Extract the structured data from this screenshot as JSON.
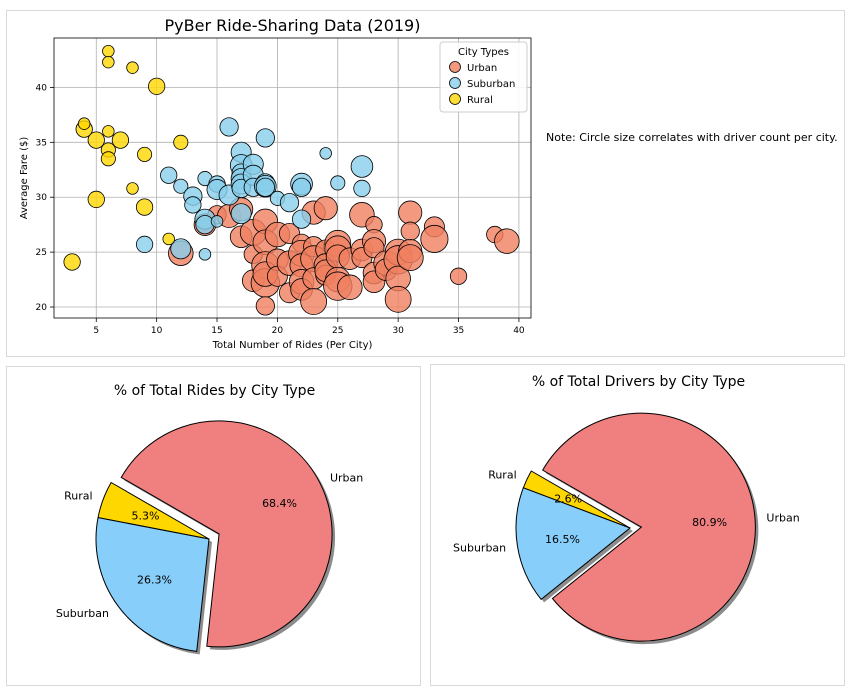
{
  "chart_data": [
    {
      "type": "scatter",
      "title": "PyBer Ride-Sharing Data (2019)",
      "xlabel": "Total Number of Rides (Per City)",
      "ylabel": "Average Fare ($)",
      "xlim": [
        1.5,
        41
      ],
      "ylim": [
        19,
        44.5
      ],
      "xticks": [
        5,
        10,
        15,
        20,
        25,
        30,
        35,
        40
      ],
      "yticks": [
        20,
        25,
        30,
        35,
        40
      ],
      "grid": true,
      "legend": {
        "title": "City Types",
        "placement": "top-right",
        "entries": [
          "Urban",
          "Suburban",
          "Rural"
        ]
      },
      "note": "Note: Circle size correlates with driver count per city.",
      "series": [
        {
          "name": "Urban",
          "color": "#F08060",
          "points": [
            [
              12,
              24.9,
              9
            ],
            [
              14,
              27.5,
              7
            ],
            [
              15,
              28.4,
              5
            ],
            [
              16,
              28.3,
              8
            ],
            [
              17,
              26.4,
              7
            ],
            [
              17,
              28.9,
              8
            ],
            [
              18,
              26.8,
              10
            ],
            [
              18,
              24.8,
              5
            ],
            [
              18,
              22.4,
              7
            ],
            [
              19,
              27.8,
              9
            ],
            [
              19,
              25.9,
              9
            ],
            [
              19,
              23.8,
              11
            ],
            [
              19,
              22.2,
              12
            ],
            [
              19,
              20.1,
              5
            ],
            [
              19,
              23.0,
              9
            ],
            [
              20,
              26.6,
              9
            ],
            [
              20,
              24.3,
              7
            ],
            [
              20,
              22.8,
              6
            ],
            [
              21,
              26.7,
              6
            ],
            [
              21,
              24.0,
              9
            ],
            [
              21,
              21.3,
              6
            ],
            [
              22,
              25.8,
              5
            ],
            [
              22,
              24.9,
              10
            ],
            [
              22,
              23.8,
              8
            ],
            [
              22,
              22.3,
              9
            ],
            [
              22,
              21.6,
              7
            ],
            [
              23,
              28.6,
              8
            ],
            [
              23,
              25.5,
              6
            ],
            [
              23,
              24.4,
              10
            ],
            [
              23,
              22.6,
              7
            ],
            [
              23,
              20.5,
              10
            ],
            [
              24,
              29.0,
              8
            ],
            [
              24,
              25.2,
              6
            ],
            [
              24,
              23.8,
              8
            ],
            [
              24,
              22.9,
              6
            ],
            [
              24,
              23.3,
              7
            ],
            [
              25,
              25.8,
              10
            ],
            [
              25,
              25.3,
              10
            ],
            [
              25,
              24.6,
              8
            ],
            [
              25,
              22.5,
              9
            ],
            [
              25,
              21.9,
              12
            ],
            [
              26,
              24.4,
              7
            ],
            [
              26,
              21.8,
              9
            ],
            [
              27,
              28.4,
              9
            ],
            [
              27,
              25.2,
              7
            ],
            [
              27,
              24.5,
              6
            ],
            [
              28,
              27.5,
              4
            ],
            [
              28,
              26.0,
              8
            ],
            [
              28,
              25.4,
              6
            ],
            [
              28,
              23.1,
              7
            ],
            [
              28,
              22.3,
              7
            ],
            [
              29,
              24.0,
              9
            ],
            [
              29,
              23.4,
              7
            ],
            [
              30,
              25.0,
              10
            ],
            [
              30,
              24.3,
              12
            ],
            [
              30,
              22.6,
              9
            ],
            [
              30,
              20.7,
              10
            ],
            [
              31,
              28.6,
              8
            ],
            [
              31,
              26.9,
              5
            ],
            [
              31,
              25.1,
              8
            ],
            [
              31,
              24.5,
              10
            ],
            [
              33,
              27.3,
              6
            ],
            [
              33,
              26.2,
              11
            ],
            [
              35,
              22.8,
              4
            ],
            [
              38,
              26.6,
              4
            ],
            [
              39,
              26.0,
              9
            ]
          ]
        },
        {
          "name": "Suburban",
          "color": "#87CEEB",
          "points": [
            [
              9,
              25.7,
              4
            ],
            [
              11,
              32.0,
              4
            ],
            [
              12,
              31.0,
              3
            ],
            [
              12,
              25.3,
              6
            ],
            [
              13,
              30.1,
              5
            ],
            [
              13,
              29.3,
              4
            ],
            [
              14,
              31.7,
              3
            ],
            [
              14,
              28.0,
              6
            ],
            [
              14,
              27.5,
              5
            ],
            [
              14,
              24.8,
              2
            ],
            [
              15,
              31.2,
              4
            ],
            [
              15,
              30.7,
              6
            ],
            [
              15,
              27.8,
              2
            ],
            [
              16,
              36.4,
              5
            ],
            [
              16,
              30.2,
              6
            ],
            [
              17,
              34.1,
              6
            ],
            [
              17,
              32.9,
              7
            ],
            [
              17,
              32.2,
              5
            ],
            [
              17,
              31.7,
              6
            ],
            [
              17,
              31.2,
              6
            ],
            [
              17,
              30.8,
              5
            ],
            [
              17,
              28.5,
              6
            ],
            [
              18,
              33.0,
              6
            ],
            [
              18,
              32.0,
              6
            ],
            [
              18,
              30.9,
              5
            ],
            [
              19,
              35.4,
              5
            ],
            [
              19,
              31.3,
              5
            ],
            [
              19,
              31.0,
              7
            ],
            [
              19,
              30.9,
              5
            ],
            [
              20,
              29.9,
              3
            ],
            [
              21,
              29.5,
              5
            ],
            [
              22,
              31.2,
              7
            ],
            [
              22,
              30.9,
              5
            ],
            [
              22,
              28.0,
              5
            ],
            [
              24,
              34.0,
              2
            ],
            [
              25,
              31.3,
              3
            ],
            [
              27,
              32.8,
              7
            ],
            [
              27,
              30.8,
              4
            ]
          ]
        },
        {
          "name": "Rural",
          "color": "#FFD700",
          "points": [
            [
              3,
              24.1,
              4
            ],
            [
              4,
              36.2,
              4
            ],
            [
              4,
              36.7,
              2
            ],
            [
              5,
              35.2,
              4
            ],
            [
              5,
              29.8,
              4
            ],
            [
              6,
              43.3,
              2
            ],
            [
              6,
              42.3,
              2
            ],
            [
              6,
              36.0,
              2
            ],
            [
              6,
              34.3,
              3
            ],
            [
              6,
              33.5,
              3
            ],
            [
              7,
              35.2,
              4
            ],
            [
              8,
              41.8,
              2
            ],
            [
              8,
              30.8,
              2
            ],
            [
              9,
              33.9,
              3
            ],
            [
              9,
              29.1,
              4
            ],
            [
              10,
              40.1,
              4
            ],
            [
              11,
              26.2,
              2
            ],
            [
              12,
              35.0,
              3
            ]
          ]
        }
      ]
    },
    {
      "type": "pie",
      "title": "% of Total Rides by City Type",
      "categories": [
        "Rural",
        "Suburban",
        "Urban"
      ],
      "values": [
        5.3,
        26.3,
        68.4
      ],
      "labels": [
        "5.3%",
        "26.3%",
        "68.4%"
      ],
      "colors": [
        "#FFD700",
        "#87CEFA",
        "#F08080"
      ],
      "explode": [
        "Urban"
      ],
      "start_angle_deg": 150,
      "shadow": true
    },
    {
      "type": "pie",
      "title": "% of Total Drivers by City Type",
      "categories": [
        "Rural",
        "Suburban",
        "Urban"
      ],
      "values": [
        2.6,
        16.5,
        80.9
      ],
      "labels": [
        "2.6%",
        "16.5%",
        "80.9%"
      ],
      "colors": [
        "#FFD700",
        "#87CEFA",
        "#F08080"
      ],
      "explode": [
        "Urban"
      ],
      "start_angle_deg": 150,
      "shadow": true
    }
  ]
}
